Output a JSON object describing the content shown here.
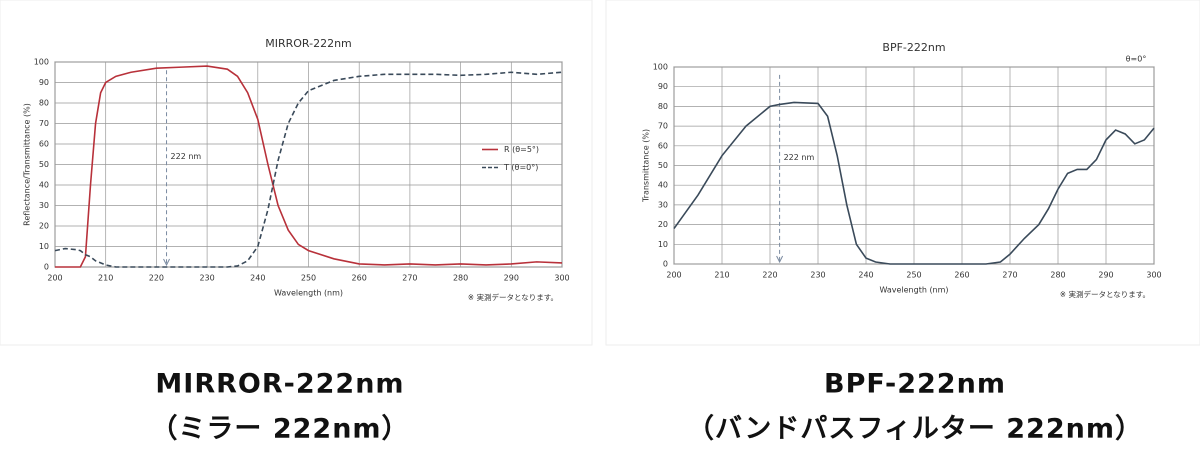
{
  "chart_data": [
    {
      "type": "line",
      "title": "MIRROR-222nm",
      "caption": [
        "MIRROR-222nm",
        "（ミラー 222nm）"
      ],
      "xlabel": "Wavelength (nm)",
      "ylabel": "Reflectance/Transmittance (%)",
      "note": "※ 実測データとなります。",
      "annotation": {
        "text": "222 nm",
        "x": 222
      },
      "xlim": [
        200,
        300
      ],
      "xticks": [
        200,
        210,
        220,
        230,
        240,
        250,
        260,
        270,
        280,
        290,
        300
      ],
      "ylim": [
        0,
        100
      ],
      "yticks": [
        0,
        10,
        20,
        30,
        40,
        50,
        60,
        70,
        80,
        90,
        100
      ],
      "grid": true,
      "legend": "right",
      "x": [
        200,
        202,
        204,
        205,
        206,
        207,
        208,
        209,
        210,
        212,
        215,
        220,
        225,
        230,
        234,
        236,
        238,
        240,
        242,
        244,
        246,
        248,
        250,
        255,
        260,
        265,
        270,
        275,
        280,
        285,
        290,
        295,
        300
      ],
      "series": [
        {
          "name": "R  (θ=5°)",
          "color": "#b8313a",
          "linestyle": "solid",
          "values": [
            0,
            0,
            0,
            0,
            5,
            40,
            70,
            85,
            90,
            93,
            95,
            97,
            97.5,
            98,
            96.5,
            93,
            85,
            72,
            50,
            30,
            18,
            11,
            8,
            4,
            1.5,
            1,
            1.5,
            1,
            1.5,
            1,
            1.5,
            2.5,
            2
          ]
        },
        {
          "name": "T  (θ=0°)",
          "color": "#3a4a5a",
          "linestyle": "dashed",
          "values": [
            8,
            9,
            8.5,
            8,
            6,
            5,
            3,
            2,
            1,
            0,
            0,
            0,
            0,
            0,
            0,
            0.5,
            3,
            10,
            28,
            52,
            70,
            80,
            86,
            91,
            93,
            94,
            94,
            94,
            93.5,
            94,
            95,
            94,
            95
          ]
        }
      ]
    },
    {
      "type": "line",
      "title": "BPF-222nm",
      "caption": [
        "BPF-222nm",
        "（バンドパスフィルター 222nm）"
      ],
      "xlabel": "Wavelength (nm)",
      "ylabel": "Transmittance (%)",
      "note": "※ 実測データとなります。",
      "subtitle": "θ=0°",
      "annotation": {
        "text": "222 nm",
        "x": 222
      },
      "xlim": [
        200,
        300
      ],
      "xticks": [
        200,
        210,
        220,
        230,
        240,
        250,
        260,
        270,
        280,
        290,
        300
      ],
      "ylim": [
        0,
        100
      ],
      "yticks": [
        0,
        10,
        20,
        30,
        40,
        50,
        60,
        70,
        80,
        90,
        100
      ],
      "grid": true,
      "color": "#3a4a5a",
      "x": [
        200,
        205,
        210,
        215,
        220,
        222,
        225,
        230,
        232,
        234,
        236,
        238,
        240,
        242,
        245,
        250,
        260,
        265,
        268,
        270,
        273,
        276,
        278,
        280,
        282,
        284,
        286,
        288,
        290,
        292,
        294,
        296,
        298,
        300
      ],
      "values": [
        18,
        35,
        55,
        70,
        80,
        81,
        82,
        81.5,
        75,
        55,
        30,
        10,
        3,
        1,
        0,
        0,
        0,
        0,
        1,
        5,
        13,
        20,
        28,
        38,
        46,
        48,
        48,
        53,
        63,
        68,
        66,
        61,
        63,
        69
      ]
    }
  ]
}
